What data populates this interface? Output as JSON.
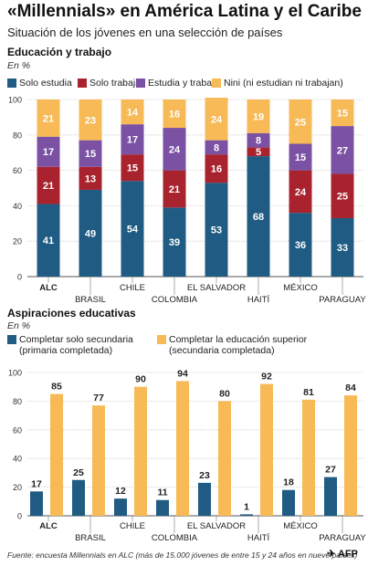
{
  "title": "«Millennials» en América Latina y el Caribe",
  "subtitle": "Situación de los jóvenes en una selección de países",
  "footer": "Fuente: encuesta Millennials en ALC (más de 15.000 jóvenes de entre 15 y 24 años en nueve países)",
  "credit": "AFP",
  "chart_data": [
    {
      "type": "bar",
      "stacked": true,
      "title": "Educación y trabajo",
      "unit": "En %",
      "ylim": [
        0,
        100
      ],
      "yticks": [
        0,
        20,
        40,
        60,
        80,
        100
      ],
      "grid": true,
      "legend_position": "top",
      "categories": [
        "ALC",
        "BRASIL",
        "CHILE",
        "COLOMBIA",
        "EL SALVADOR",
        "HAITÍ",
        "MÉXICO",
        "PARAGUAY"
      ],
      "series": [
        {
          "name": "Solo estudia",
          "color": "#1f5b82",
          "values": [
            41,
            49,
            54,
            39,
            53,
            68,
            36,
            33
          ]
        },
        {
          "name": "Solo trabaja",
          "color": "#a8232e",
          "values": [
            21,
            13,
            15,
            21,
            16,
            5,
            24,
            25
          ]
        },
        {
          "name": "Estudia y trabaja",
          "color": "#7a51a3",
          "values": [
            17,
            15,
            17,
            24,
            8,
            8,
            15,
            27
          ]
        },
        {
          "name": "Nini (ni estudian ni trabajan)",
          "color": "#f7ba57",
          "values": [
            21,
            23,
            14,
            16,
            24,
            19,
            25,
            15
          ]
        }
      ]
    },
    {
      "type": "bar",
      "stacked": false,
      "title": "Aspiraciones educativas",
      "unit": "En %",
      "ylim": [
        0,
        100
      ],
      "yticks": [
        0,
        20,
        40,
        60,
        80,
        100
      ],
      "grid": true,
      "legend_position": "top",
      "categories": [
        "ALC",
        "BRASIL",
        "CHILE",
        "COLOMBIA",
        "EL SALVADOR",
        "HAITÍ",
        "MÉXICO",
        "PARAGUAY"
      ],
      "series": [
        {
          "name": "Completar solo secundaria (primaria completada)",
          "color": "#1f5b82",
          "values": [
            17,
            25,
            12,
            11,
            23,
            1,
            18,
            27
          ]
        },
        {
          "name": "Completar la educación superior (secundaria completada)",
          "color": "#f7ba57",
          "values": [
            85,
            77,
            90,
            94,
            80,
            92,
            81,
            84
          ]
        }
      ]
    }
  ]
}
